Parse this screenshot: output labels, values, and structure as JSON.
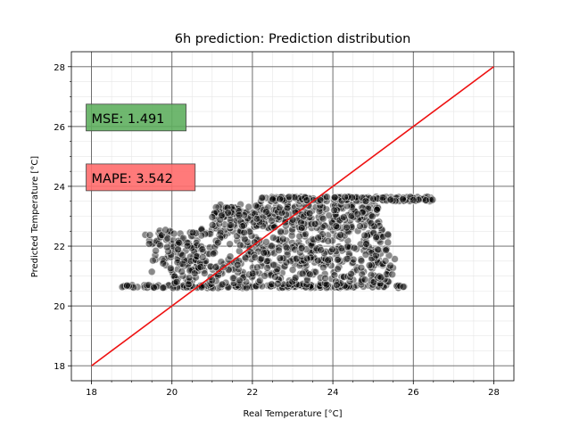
{
  "chart_data": {
    "type": "scatter",
    "title": "6h prediction: Prediction distribution",
    "xlabel": "Real Temperature [°C]",
    "ylabel": "Predicted Temperature [°C]",
    "xlim": [
      17.5,
      28.5
    ],
    "ylim": [
      17.5,
      28.5
    ],
    "xticks": [
      18,
      20,
      22,
      24,
      26,
      28
    ],
    "yticks": [
      18,
      20,
      22,
      24,
      26,
      28
    ],
    "xtick_labels": [
      "18",
      "20",
      "22",
      "24",
      "26",
      "28"
    ],
    "ytick_labels": [
      "18",
      "20",
      "22",
      "24",
      "26",
      "28"
    ],
    "grid": true,
    "minor_grid": true,
    "reference_line": {
      "from": [
        18,
        18
      ],
      "to": [
        28,
        28
      ],
      "color": "#ee1111"
    },
    "point_color": "#000000",
    "annotations": [
      {
        "text": "MSE: 1.491",
        "color": "#5faf5f",
        "anchor": [
          18,
          26.3
        ]
      },
      {
        "text": "MAPE: 3.542",
        "color": "#ff6b6b",
        "anchor": [
          18,
          24.3
        ]
      }
    ],
    "point_clusters": [
      {
        "x_range": [
          18.7,
          25.8
        ],
        "y_range": [
          20.6,
          20.7
        ],
        "count": 180
      },
      {
        "x_range": [
          20.0,
          25.6
        ],
        "y_range": [
          20.7,
          21.6
        ],
        "count": 260
      },
      {
        "x_range": [
          19.5,
          25.4
        ],
        "y_range": [
          21.5,
          22.6
        ],
        "count": 320
      },
      {
        "x_range": [
          21.0,
          25.2
        ],
        "y_range": [
          22.6,
          23.4
        ],
        "count": 300
      },
      {
        "x_range": [
          22.2,
          26.5
        ],
        "y_range": [
          23.5,
          23.65
        ],
        "count": 160
      },
      {
        "x_range": [
          19.3,
          20.8
        ],
        "y_range": [
          21.0,
          22.6
        ],
        "count": 40
      }
    ]
  }
}
